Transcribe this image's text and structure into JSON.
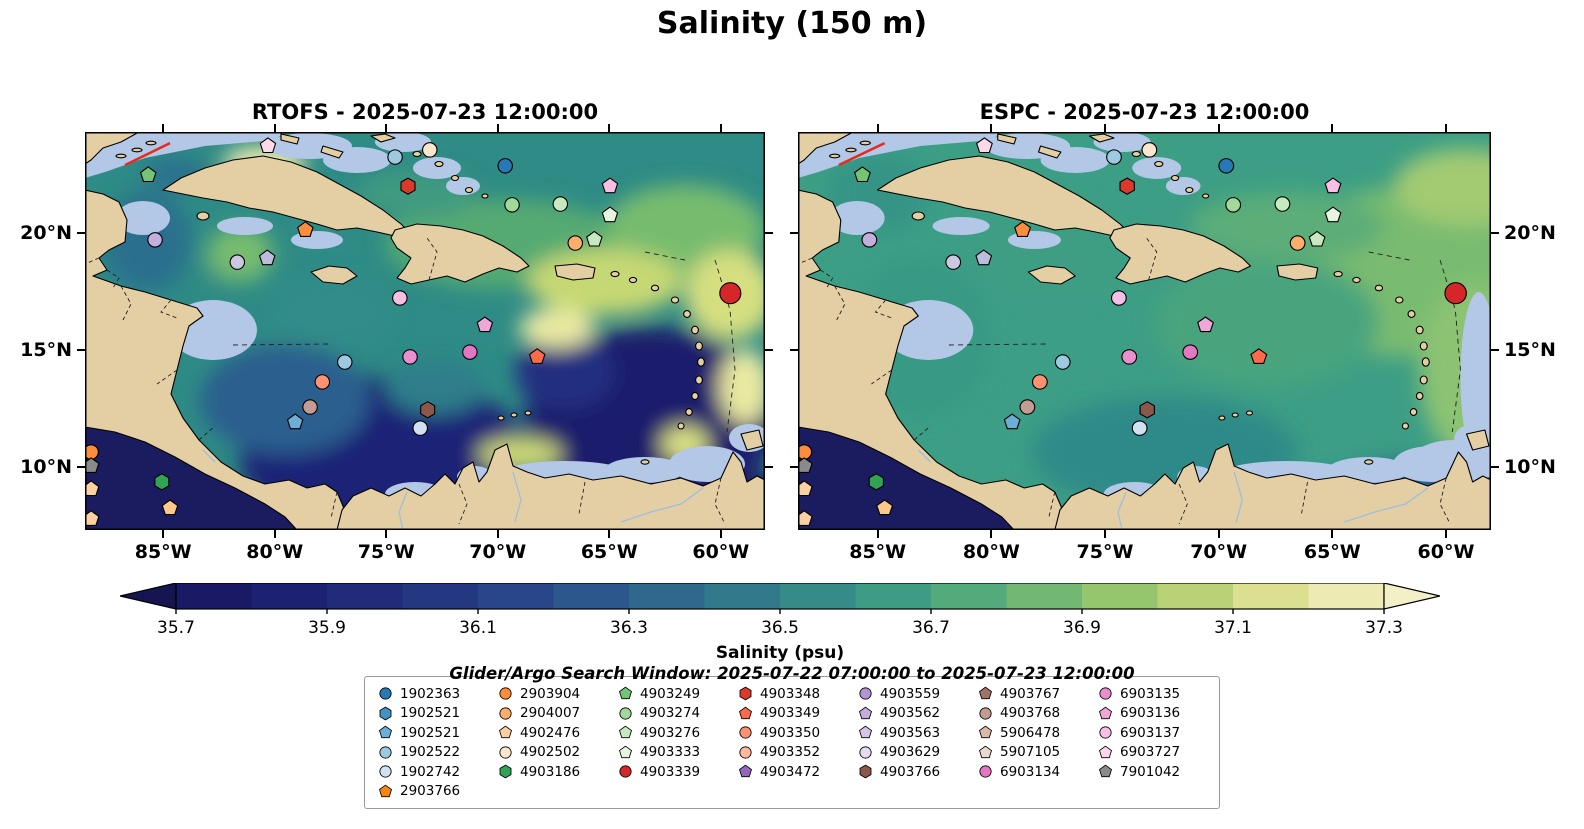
{
  "figure_title": "Salinity (150 m)",
  "panels": [
    {
      "title": "RTOFS - 2025-07-23 12:00:00",
      "model": "RTOFS"
    },
    {
      "title": "ESPC - 2025-07-23 12:00:00",
      "model": "ESPC"
    }
  ],
  "axes": {
    "lon_ticks": [
      {
        "label": "85°W",
        "pos_pct": 11.5
      },
      {
        "label": "80°W",
        "pos_pct": 27.9
      },
      {
        "label": "75°W",
        "pos_pct": 44.3
      },
      {
        "label": "70°W",
        "pos_pct": 60.7
      },
      {
        "label": "65°W",
        "pos_pct": 77.1
      },
      {
        "label": "60°W",
        "pos_pct": 93.5
      }
    ],
    "lat_ticks": [
      {
        "label": "20°N",
        "pos_pct": 25.4
      },
      {
        "label": "15°N",
        "pos_pct": 54.8
      },
      {
        "label": "10°N",
        "pos_pct": 84.2
      }
    ]
  },
  "colorbar": {
    "label": "Salinity (psu)",
    "ticks": [
      "35.7",
      "35.9",
      "36.1",
      "36.3",
      "36.5",
      "36.7",
      "36.9",
      "37.1",
      "37.3"
    ],
    "colors": [
      "#191966",
      "#1d2173",
      "#202b7c",
      "#243781",
      "#284689",
      "#2c578d",
      "#2f688d",
      "#32798b",
      "#358b88",
      "#3d9c83",
      "#53ab7b",
      "#72b873",
      "#95c56d",
      "#b9d275",
      "#dbdf90",
      "#eeeab4"
    ],
    "extend_low": "#151552",
    "extend_high": "#f3efc6"
  },
  "search_window_text": "Glider/Argo Search Window: 2025-07-22 07:00:00 to 2025-07-23 12:00:00",
  "legend": {
    "columns": [
      [
        {
          "id": "1902363",
          "shape": "circle",
          "color": "#2878b5"
        },
        {
          "id": "1902521",
          "shape": "hexagon",
          "color": "#4292c6"
        },
        {
          "id": "1902521",
          "shape": "pentagon",
          "color": "#6baed6"
        },
        {
          "id": "1902522",
          "shape": "circle",
          "color": "#9ecae1"
        },
        {
          "id": "1902742",
          "shape": "circle",
          "color": "#d0e1f2"
        },
        {
          "id": "2903766",
          "shape": "pentagon",
          "color": "#f8860f"
        }
      ],
      [
        {
          "id": "2903904",
          "shape": "circle",
          "color": "#fd8d3c"
        },
        {
          "id": "2904007",
          "shape": "circle",
          "color": "#fdae6b"
        },
        {
          "id": "4902476",
          "shape": "pentagon",
          "color": "#fdd0a2"
        },
        {
          "id": "4902502",
          "shape": "circle",
          "color": "#fee6ce"
        },
        {
          "id": "4903186",
          "shape": "hexagon",
          "color": "#31a354"
        }
      ],
      [
        {
          "id": "4903249",
          "shape": "pentagon",
          "color": "#74c476"
        },
        {
          "id": "4903274",
          "shape": "circle",
          "color": "#a1d99b"
        },
        {
          "id": "4903276",
          "shape": "pentagon",
          "color": "#c7e9c0"
        },
        {
          "id": "4903333",
          "shape": "pentagon",
          "color": "#e5f5e0"
        },
        {
          "id": "4903339",
          "shape": "circle",
          "color": "#d62728"
        }
      ],
      [
        {
          "id": "4903348",
          "shape": "hexagon",
          "color": "#d93a2b"
        },
        {
          "id": "4903349",
          "shape": "pentagon",
          "color": "#fb6a4a"
        },
        {
          "id": "4903350",
          "shape": "circle",
          "color": "#fc9272"
        },
        {
          "id": "4903352",
          "shape": "circle",
          "color": "#fcbba1"
        },
        {
          "id": "4903472",
          "shape": "pentagon",
          "color": "#9467bd"
        }
      ],
      [
        {
          "id": "4903559",
          "shape": "circle",
          "color": "#b295d2"
        },
        {
          "id": "4903562",
          "shape": "pentagon",
          "color": "#c3aedd"
        },
        {
          "id": "4903563",
          "shape": "pentagon",
          "color": "#d5c5e8"
        },
        {
          "id": "4903629",
          "shape": "circle",
          "color": "#e6dcf2"
        },
        {
          "id": "4903766",
          "shape": "hexagon",
          "color": "#8c564b"
        }
      ],
      [
        {
          "id": "4903767",
          "shape": "pentagon",
          "color": "#a07368"
        },
        {
          "id": "4903768",
          "shape": "circle",
          "color": "#c49c94"
        },
        {
          "id": "5906478",
          "shape": "pentagon",
          "color": "#d9bbac"
        },
        {
          "id": "5907105",
          "shape": "pentagon",
          "color": "#ecd9d0"
        },
        {
          "id": "6903134",
          "shape": "circle",
          "color": "#e377c2"
        }
      ],
      [
        {
          "id": "6903135",
          "shape": "circle",
          "color": "#ea8fcd"
        },
        {
          "id": "6903136",
          "shape": "pentagon",
          "color": "#f0a7d8"
        },
        {
          "id": "6903137",
          "shape": "circle",
          "color": "#f6bfe3"
        },
        {
          "id": "6903727",
          "shape": "pentagon",
          "color": "#fbd7ee"
        },
        {
          "id": "7901042",
          "shape": "pentagon",
          "color": "#8a8a8a"
        }
      ]
    ]
  },
  "chart_data": {
    "type": "heatmap",
    "variable": "Salinity (psu)",
    "depth": "150 m",
    "valid_time": "2025-07-23 12:00:00",
    "models": [
      "RTOFS",
      "ESPC"
    ],
    "map_extent": {
      "lon_west": "88.5°W",
      "lon_east": "58°W",
      "lat_south": "7.3°N",
      "lat_north": "24.3°N"
    },
    "colorbar_range": [
      35.7,
      37.3
    ],
    "legend_title": "Glider/Argo platforms",
    "glider_track": {
      "x1_pct": 5.9,
      "y1_pct": 8.3,
      "x2_pct": 12.5,
      "y2_pct": 2.8,
      "color": "#e8281e",
      "width": 2.5
    },
    "platform_markers": [
      {
        "x_pct": 9.3,
        "y_pct": 10.8,
        "lon": "85.7°W",
        "lat": "22.5°N",
        "shape": "pentagon",
        "color": "#74c476"
      },
      {
        "x_pct": 26.9,
        "y_pct": 3.5,
        "lon": "80.3°W",
        "lat": "23.7°N",
        "shape": "pentagon",
        "color": "#fbd9e9"
      },
      {
        "x_pct": 45.6,
        "y_pct": 6.3,
        "lon": "74.6°W",
        "lat": "23.2°N",
        "shape": "circle",
        "color": "#9ecae1"
      },
      {
        "x_pct": 50.7,
        "y_pct": 4.5,
        "lon": "73.0°W",
        "lat": "23.5°N",
        "shape": "circle",
        "color": "#fee6ce"
      },
      {
        "x_pct": 47.5,
        "y_pct": 13.6,
        "lon": "74.0°W",
        "lat": "22.0°N",
        "shape": "hexagon",
        "color": "#d93a2b"
      },
      {
        "x_pct": 61.8,
        "y_pct": 8.5,
        "lon": "69.7°W",
        "lat": "22.9°N",
        "shape": "circle",
        "color": "#2878b5"
      },
      {
        "x_pct": 77.2,
        "y_pct": 13.6,
        "lon": "65.0°W",
        "lat": "22.0°N",
        "shape": "pentagon",
        "color": "#f6bfe3"
      },
      {
        "x_pct": 62.8,
        "y_pct": 18.3,
        "lon": "69.3°W",
        "lat": "21.2°N",
        "shape": "circle",
        "color": "#a1d99b"
      },
      {
        "x_pct": 69.9,
        "y_pct": 18.1,
        "lon": "67.2°W",
        "lat": "21.2°N",
        "shape": "circle",
        "color": "#c7e9c0"
      },
      {
        "x_pct": 77.2,
        "y_pct": 20.9,
        "lon": "65.0°W",
        "lat": "20.7°N",
        "shape": "pentagon",
        "color": "#e5f5e0"
      },
      {
        "x_pct": 32.4,
        "y_pct": 24.6,
        "lon": "78.6°W",
        "lat": "20.1°N",
        "shape": "pentagon",
        "color": "#fd8d3c"
      },
      {
        "x_pct": 10.3,
        "y_pct": 27.1,
        "lon": "85.4°W",
        "lat": "19.7°N",
        "shape": "circle",
        "color": "#c3aedd"
      },
      {
        "x_pct": 22.4,
        "y_pct": 32.7,
        "lon": "81.7°W",
        "lat": "18.7°N",
        "shape": "circle",
        "color": "#cbc9e2"
      },
      {
        "x_pct": 26.8,
        "y_pct": 31.7,
        "lon": "80.3°W",
        "lat": "18.9°N",
        "shape": "pentagon",
        "color": "#bcbddc"
      },
      {
        "x_pct": 72.1,
        "y_pct": 27.9,
        "lon": "66.5°W",
        "lat": "19.6°N",
        "shape": "circle",
        "color": "#fdae6b"
      },
      {
        "x_pct": 74.9,
        "y_pct": 27.0,
        "lon": "65.7°W",
        "lat": "19.7°N",
        "shape": "pentagon",
        "color": "#c7e9c0"
      },
      {
        "x_pct": 46.3,
        "y_pct": 41.7,
        "lon": "74.4°W",
        "lat": "17.2°N",
        "shape": "circle",
        "color": "#f6bfe3"
      },
      {
        "x_pct": 94.9,
        "y_pct": 40.5,
        "lon": "59.6°W",
        "lat": "17.4°N",
        "shape": "circle",
        "color": "#d62728",
        "size": 10.5
      },
      {
        "x_pct": 58.8,
        "y_pct": 48.5,
        "lon": "70.6°W",
        "lat": "16.1°N",
        "shape": "pentagon",
        "color": "#f0a7d8"
      },
      {
        "x_pct": 38.2,
        "y_pct": 57.8,
        "lon": "76.8°W",
        "lat": "14.5°N",
        "shape": "circle",
        "color": "#9ecae1"
      },
      {
        "x_pct": 47.8,
        "y_pct": 56.5,
        "lon": "73.9°W",
        "lat": "14.7°N",
        "shape": "circle",
        "color": "#ea8fcd"
      },
      {
        "x_pct": 56.6,
        "y_pct": 55.3,
        "lon": "71.2°W",
        "lat": "14.9°N",
        "shape": "circle",
        "color": "#e377c2"
      },
      {
        "x_pct": 66.5,
        "y_pct": 56.5,
        "lon": "68.2°W",
        "lat": "14.7°N",
        "shape": "pentagon",
        "color": "#fb6a4a"
      },
      {
        "x_pct": 34.9,
        "y_pct": 62.8,
        "lon": "77.9°W",
        "lat": "13.6°N",
        "shape": "circle",
        "color": "#fc9272"
      },
      {
        "x_pct": 33.1,
        "y_pct": 69.1,
        "lon": "78.4°W",
        "lat": "12.6°N",
        "shape": "circle",
        "color": "#c49c94"
      },
      {
        "x_pct": 30.9,
        "y_pct": 72.9,
        "lon": "79.1°W",
        "lat": "11.9°N",
        "shape": "pentagon",
        "color": "#6baed6"
      },
      {
        "x_pct": 50.4,
        "y_pct": 69.8,
        "lon": "73.1°W",
        "lat": "12.4°N",
        "shape": "hexagon",
        "color": "#8c564b"
      },
      {
        "x_pct": 49.3,
        "y_pct": 74.4,
        "lon": "73.5°W",
        "lat": "11.7°N",
        "shape": "circle",
        "color": "#d0e1f2"
      },
      {
        "x_pct": 0.9,
        "y_pct": 80.4,
        "lon": "88.3°W",
        "lat": "10.6°N",
        "shape": "circle",
        "color": "#fd8d3c"
      },
      {
        "x_pct": 0.9,
        "y_pct": 83.9,
        "lon": "88.3°W",
        "lat": "10.0°N",
        "shape": "pentagon",
        "color": "#8a8a8a"
      },
      {
        "x_pct": 11.3,
        "y_pct": 87.9,
        "lon": "85.1°W",
        "lat": "9.4°N",
        "shape": "hexagon",
        "color": "#31a354"
      },
      {
        "x_pct": 0.9,
        "y_pct": 89.7,
        "lon": "88.3°W",
        "lat": "9.1°N",
        "shape": "pentagon",
        "color": "#fdd0a2"
      },
      {
        "x_pct": 12.5,
        "y_pct": 94.5,
        "lon": "84.7°W",
        "lat": "8.2°N",
        "shape": "pentagon",
        "color": "#fdc98c"
      },
      {
        "x_pct": 0.9,
        "y_pct": 97.2,
        "lon": "88.3°W",
        "lat": "7.8°N",
        "shape": "pentagon",
        "color": "#fdd0a2"
      }
    ]
  }
}
